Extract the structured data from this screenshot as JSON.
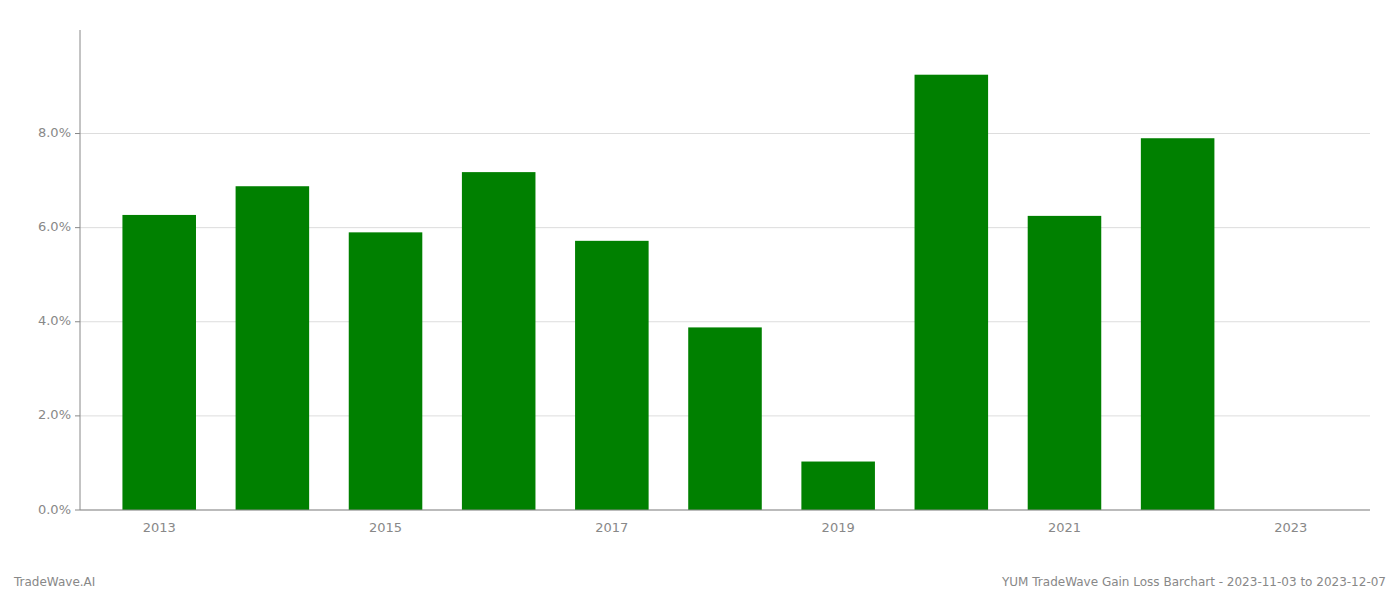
{
  "chart_data": {
    "type": "bar",
    "categories": [
      "2013",
      null,
      "2015",
      null,
      "2017",
      null,
      "2019",
      null,
      "2021",
      null,
      "2023"
    ],
    "values": [
      0.0627,
      0.0688,
      0.059,
      0.0718,
      0.0572,
      0.0388,
      0.0103,
      0.0925,
      0.0625,
      0.079,
      null
    ],
    "color": "#008000",
    "ylim": [
      0,
      0.102
    ],
    "yticks": [
      {
        "value": 0.0,
        "label": "0.0%"
      },
      {
        "value": 0.02,
        "label": "2.0%"
      },
      {
        "value": 0.04,
        "label": "4.0%"
      },
      {
        "value": 0.06,
        "label": "6.0%"
      },
      {
        "value": 0.08,
        "label": "8.0%"
      }
    ],
    "grid": true,
    "annotations": [
      "TradeWave.AI",
      "YUM TradeWave Gain Loss Barchart - 2023-11-03 to 2023-12-07"
    ]
  }
}
